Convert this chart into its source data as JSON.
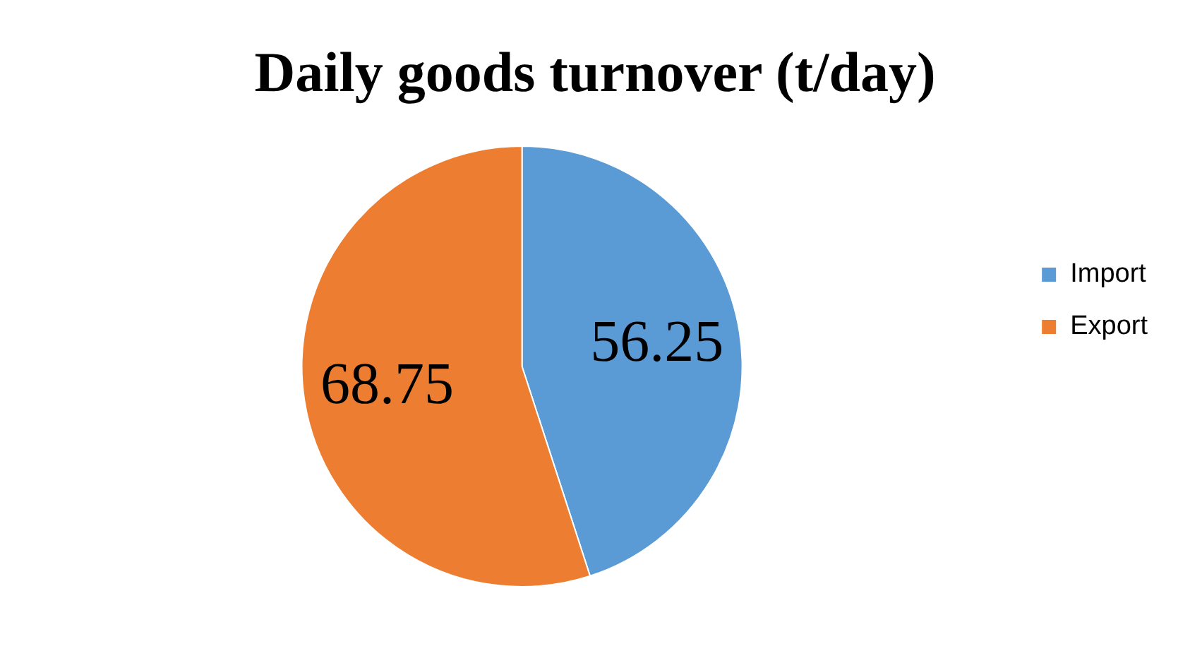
{
  "chart_data": {
    "type": "pie",
    "title": "Daily goods turnover (t/day)",
    "categories": [
      "Import",
      "Export"
    ],
    "values": [
      56.25,
      68.75
    ],
    "colors": [
      "#5b9bd5",
      "#ed7d31"
    ],
    "data_labels": true,
    "legend": "right"
  }
}
